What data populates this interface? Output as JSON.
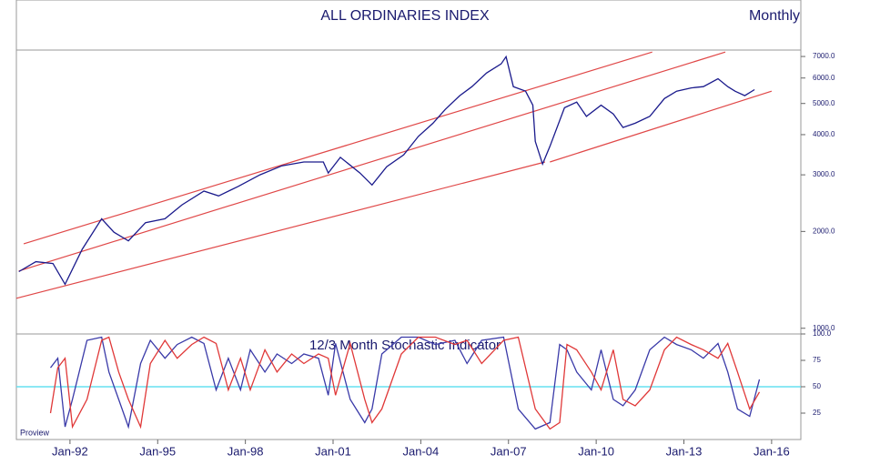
{
  "chart_data": [
    {
      "type": "line",
      "title": "ALL ORDINARIES INDEX",
      "subtitle": "Monthly",
      "log_scale": true,
      "xlim": [
        "1990-03",
        "2017-01"
      ],
      "ylim": [
        960,
        7330
      ],
      "yticks": [
        {
          "value": 1000,
          "label": "1000.0"
        },
        {
          "value": 2000,
          "label": "2000.0"
        },
        {
          "value": 3000,
          "label": "3000.0"
        },
        {
          "value": 4000,
          "label": "4000.0"
        },
        {
          "value": 5000,
          "label": "5000.0"
        },
        {
          "value": 6000,
          "label": "6000.0"
        },
        {
          "value": 7000,
          "label": "7000.0"
        }
      ],
      "x": [
        "1990-04",
        "1990-11",
        "1991-06",
        "1991-11",
        "1992-06",
        "1993-02",
        "1993-07",
        "1994-01",
        "1994-08",
        "1995-04",
        "1995-11",
        "1996-08",
        "1997-02",
        "1997-10",
        "1998-07",
        "1999-04",
        "2000-01",
        "2000-09",
        "2000-11",
        "2001-04",
        "2001-12",
        "2002-05",
        "2002-11",
        "2003-06",
        "2003-12",
        "2004-06",
        "2004-11",
        "2005-05",
        "2005-10",
        "2006-04",
        "2006-10",
        "2006-12",
        "2007-03",
        "2007-08",
        "2007-11",
        "2007-12",
        "2008-03",
        "2008-06",
        "2008-12",
        "2009-05",
        "2009-09",
        "2010-03",
        "2010-08",
        "2010-12",
        "2011-05",
        "2011-11",
        "2012-05",
        "2012-10",
        "2013-04",
        "2013-09",
        "2014-03",
        "2014-07",
        "2014-10",
        "2015-02",
        "2015-06"
      ],
      "series": [
        {
          "color": "#1a1a8c",
          "values": [
            1500,
            1610,
            1590,
            1370,
            1760,
            2190,
            1990,
            1870,
            2130,
            2190,
            2420,
            2670,
            2580,
            2760,
            3000,
            3200,
            3290,
            3290,
            3040,
            3400,
            3040,
            2790,
            3180,
            3460,
            3950,
            4340,
            4790,
            5290,
            5640,
            6220,
            6640,
            6990,
            5640,
            5460,
            4940,
            3810,
            3240,
            3680,
            4850,
            5050,
            4560,
            4940,
            4640,
            4210,
            4340,
            4560,
            5180,
            5460,
            5590,
            5640,
            5970,
            5640,
            5460,
            5290,
            5520
          ]
        }
      ],
      "channel_color": "#e04848",
      "channels": [
        {
          "x": [
            "1990-06",
            "2011-12"
          ],
          "values": [
            1831,
            7225
          ]
        },
        {
          "x": [
            "1990-04",
            "2014-06"
          ],
          "values": [
            1507,
            7225
          ]
        },
        {
          "x": [
            "1990-03",
            "2008-04"
          ],
          "values": [
            1239,
            3289
          ]
        },
        {
          "x": [
            "2008-06",
            "2016-01"
          ],
          "values": [
            3289,
            5460
          ]
        }
      ]
    },
    {
      "type": "line",
      "title": "12/3 Month Stochastic Indicator",
      "watermark": "Proview",
      "xlim": [
        "1990-03",
        "2017-01"
      ],
      "ylim": [
        0,
        100
      ],
      "yticks": [
        25,
        50,
        75,
        {
          "value": 100,
          "label": "100.0"
        }
      ],
      "reference_line": 50,
      "reference_color": "#66e0f0",
      "xticks": [
        {
          "value": "1992-01",
          "label": "Jan-92"
        },
        {
          "value": "1995-01",
          "label": "Jan-95"
        },
        {
          "value": "1998-01",
          "label": "Jan-98"
        },
        {
          "value": "2001-01",
          "label": "Jan-01"
        },
        {
          "value": "2004-01",
          "label": "Jan-04"
        },
        {
          "value": "2007-01",
          "label": "Jan-07"
        },
        {
          "value": "2010-01",
          "label": "Jan-10"
        },
        {
          "value": "2013-01",
          "label": "Jan-13"
        },
        {
          "value": "2016-01",
          "label": "Jan-16"
        }
      ],
      "x": [
        "1991-05",
        "1991-08",
        "1991-11",
        "1992-02",
        "1992-08",
        "1993-02",
        "1993-05",
        "1993-09",
        "1994-01",
        "1994-06",
        "1994-10",
        "1995-04",
        "1995-09",
        "1996-03",
        "1996-08",
        "1997-01",
        "1997-06",
        "1997-11",
        "1998-03",
        "1998-09",
        "1999-02",
        "1999-08",
        "2000-01",
        "2000-07",
        "2000-11",
        "2001-02",
        "2001-08",
        "2002-02",
        "2002-05",
        "2002-09",
        "2003-05",
        "2003-12",
        "2004-07",
        "2005-03",
        "2005-08",
        "2006-02",
        "2006-11",
        "2007-05",
        "2007-12",
        "2008-06",
        "2008-10",
        "2009-01",
        "2009-05",
        "2009-11",
        "2010-03",
        "2010-08",
        "2010-12",
        "2011-05",
        "2011-11",
        "2012-05",
        "2012-10",
        "2013-04",
        "2013-09",
        "2014-03",
        "2014-07",
        "2014-11",
        "2015-04",
        "2015-08"
      ],
      "series": [
        {
          "color": "#3a3aa8",
          "values": [
            68,
            77,
            12,
            38,
            94,
            97,
            64,
            38,
            12,
            72,
            94,
            77,
            90,
            97,
            91,
            47,
            77,
            47,
            85,
            64,
            81,
            72,
            81,
            77,
            42,
            91,
            38,
            16,
            29,
            81,
            97,
            97,
            90,
            94,
            72,
            94,
            97,
            29,
            10,
            16,
            90,
            85,
            64,
            47,
            85,
            38,
            32,
            47,
            85,
            97,
            90,
            85,
            77,
            91,
            64,
            29,
            22,
            57
          ]
        },
        {
          "color": "#e03838",
          "values": [
            25,
            68,
            77,
            12,
            38,
            94,
            97,
            64,
            38,
            12,
            72,
            94,
            77,
            90,
            97,
            91,
            47,
            77,
            47,
            85,
            64,
            81,
            72,
            81,
            77,
            42,
            91,
            38,
            16,
            29,
            81,
            97,
            97,
            90,
            94,
            72,
            94,
            97,
            29,
            10,
            16,
            90,
            85,
            64,
            47,
            85,
            38,
            32,
            47,
            85,
            97,
            90,
            85,
            77,
            91,
            64,
            29,
            45
          ]
        }
      ]
    }
  ]
}
